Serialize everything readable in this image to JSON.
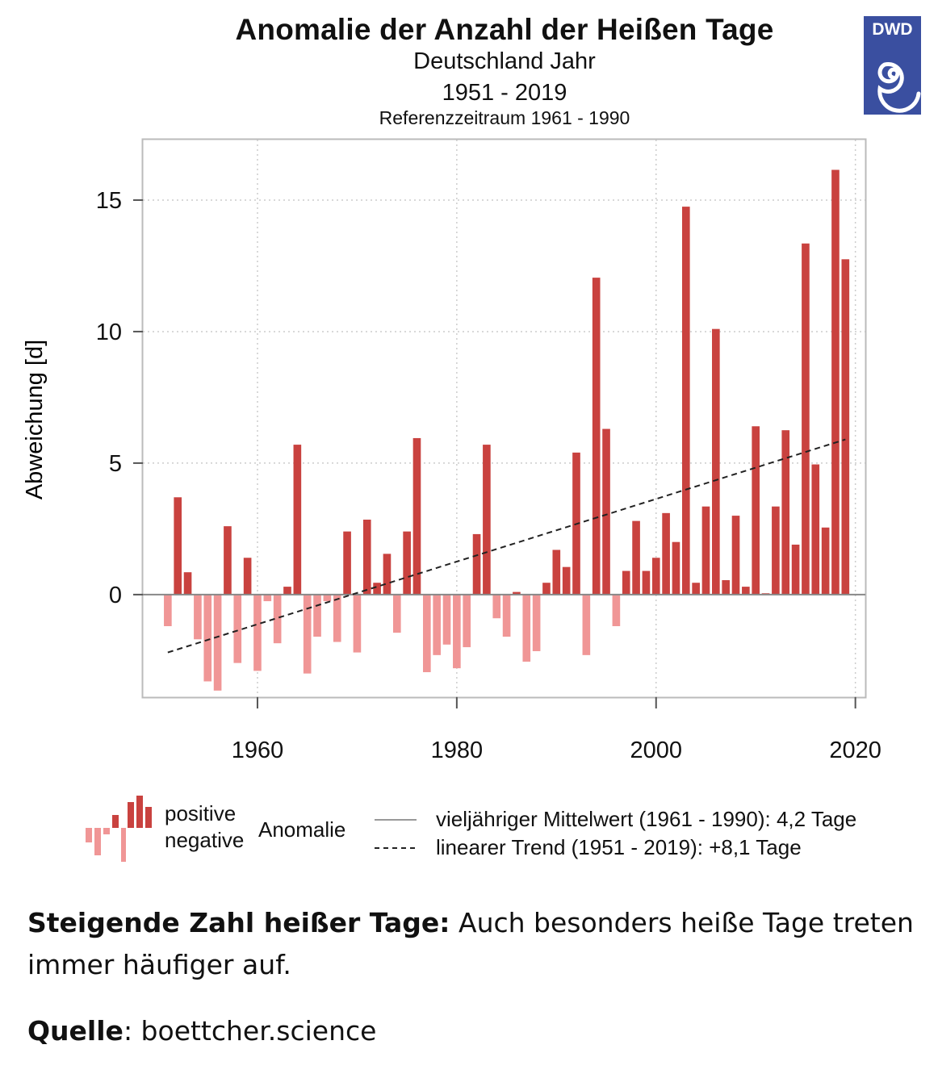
{
  "header": {
    "title": "Anomalie der Anzahl der Heißen Tage",
    "subtitle": "Deutschland Jahr",
    "years": "1951 - 2019",
    "reference": "Referenzzeitraum 1961 - 1990",
    "logo_text": "DWD",
    "logo_color": "#3a4fa0"
  },
  "chart_data": {
    "type": "bar",
    "title": "Anomalie der Anzahl der Heißen Tage",
    "subtitle": "Deutschland Jahr 1951 - 2019, Referenzzeitraum 1961 - 1990",
    "xlabel": "",
    "ylabel": "Abweichung [d]",
    "xlim": [
      1948.5,
      2021
    ],
    "ylim": [
      -3.9,
      17.3
    ],
    "xticks": [
      1960,
      1980,
      2000,
      2020
    ],
    "yticks": [
      0,
      5,
      10,
      15
    ],
    "grid": true,
    "colors": {
      "positive": "#c9423f",
      "negative": "#f09696",
      "trend": "#222222",
      "zero_line": "#888888"
    },
    "x": [
      1951,
      1952,
      1953,
      1954,
      1955,
      1956,
      1957,
      1958,
      1959,
      1960,
      1961,
      1962,
      1963,
      1964,
      1965,
      1966,
      1967,
      1968,
      1969,
      1970,
      1971,
      1972,
      1973,
      1974,
      1975,
      1976,
      1977,
      1978,
      1979,
      1980,
      1981,
      1982,
      1983,
      1984,
      1985,
      1986,
      1987,
      1988,
      1989,
      1990,
      1991,
      1992,
      1993,
      1994,
      1995,
      1996,
      1997,
      1998,
      1999,
      2000,
      2001,
      2002,
      2003,
      2004,
      2005,
      2006,
      2007,
      2008,
      2009,
      2010,
      2011,
      2012,
      2013,
      2014,
      2015,
      2016,
      2017,
      2018,
      2019
    ],
    "values": [
      -1.2,
      3.7,
      0.85,
      -1.7,
      -3.3,
      -3.65,
      2.6,
      -2.6,
      1.4,
      -2.9,
      -0.25,
      -1.85,
      0.3,
      5.7,
      -3.0,
      -1.6,
      -0.25,
      -1.8,
      2.4,
      -2.2,
      2.85,
      0.45,
      1.55,
      -1.45,
      2.4,
      5.95,
      -2.95,
      -2.3,
      -1.9,
      -2.8,
      -2.0,
      2.3,
      5.7,
      -0.9,
      -1.6,
      0.1,
      -2.55,
      -2.15,
      0.45,
      1.7,
      1.05,
      5.4,
      -2.3,
      12.05,
      6.3,
      -1.2,
      0.9,
      2.8,
      0.9,
      1.4,
      3.1,
      2.0,
      14.75,
      0.45,
      3.35,
      10.1,
      0.55,
      3.0,
      0.3,
      6.4,
      0.05,
      3.35,
      6.25,
      1.9,
      13.35,
      4.95,
      2.55,
      16.15,
      12.75
    ],
    "trend": {
      "x": [
        1951,
        2019
      ],
      "y": [
        -2.2,
        5.9
      ],
      "label": "linearer Trend (1951 - 2019): +8,1 Tage"
    },
    "reference_mean": {
      "value": 0,
      "label": "vieljähriger Mittelwert (1961 - 1990): 4,2 Tage"
    },
    "legend": {
      "placement": "bottom",
      "positive": "positive",
      "negative": "negative",
      "anomaly": "Anomalie",
      "mean": "vieljähriger Mittelwert (1961 - 1990): 4,2 Tage",
      "trend": "linearer Trend (1951 - 2019): +8,1 Tage"
    }
  },
  "caption": {
    "bold": "Steigende Zahl heißer Tage:",
    "text": " Auch besonders heiße Tage treten immer häufiger auf.",
    "source_label": "Quelle",
    "source_sep": ":",
    "source_value": " boettcher.science"
  }
}
